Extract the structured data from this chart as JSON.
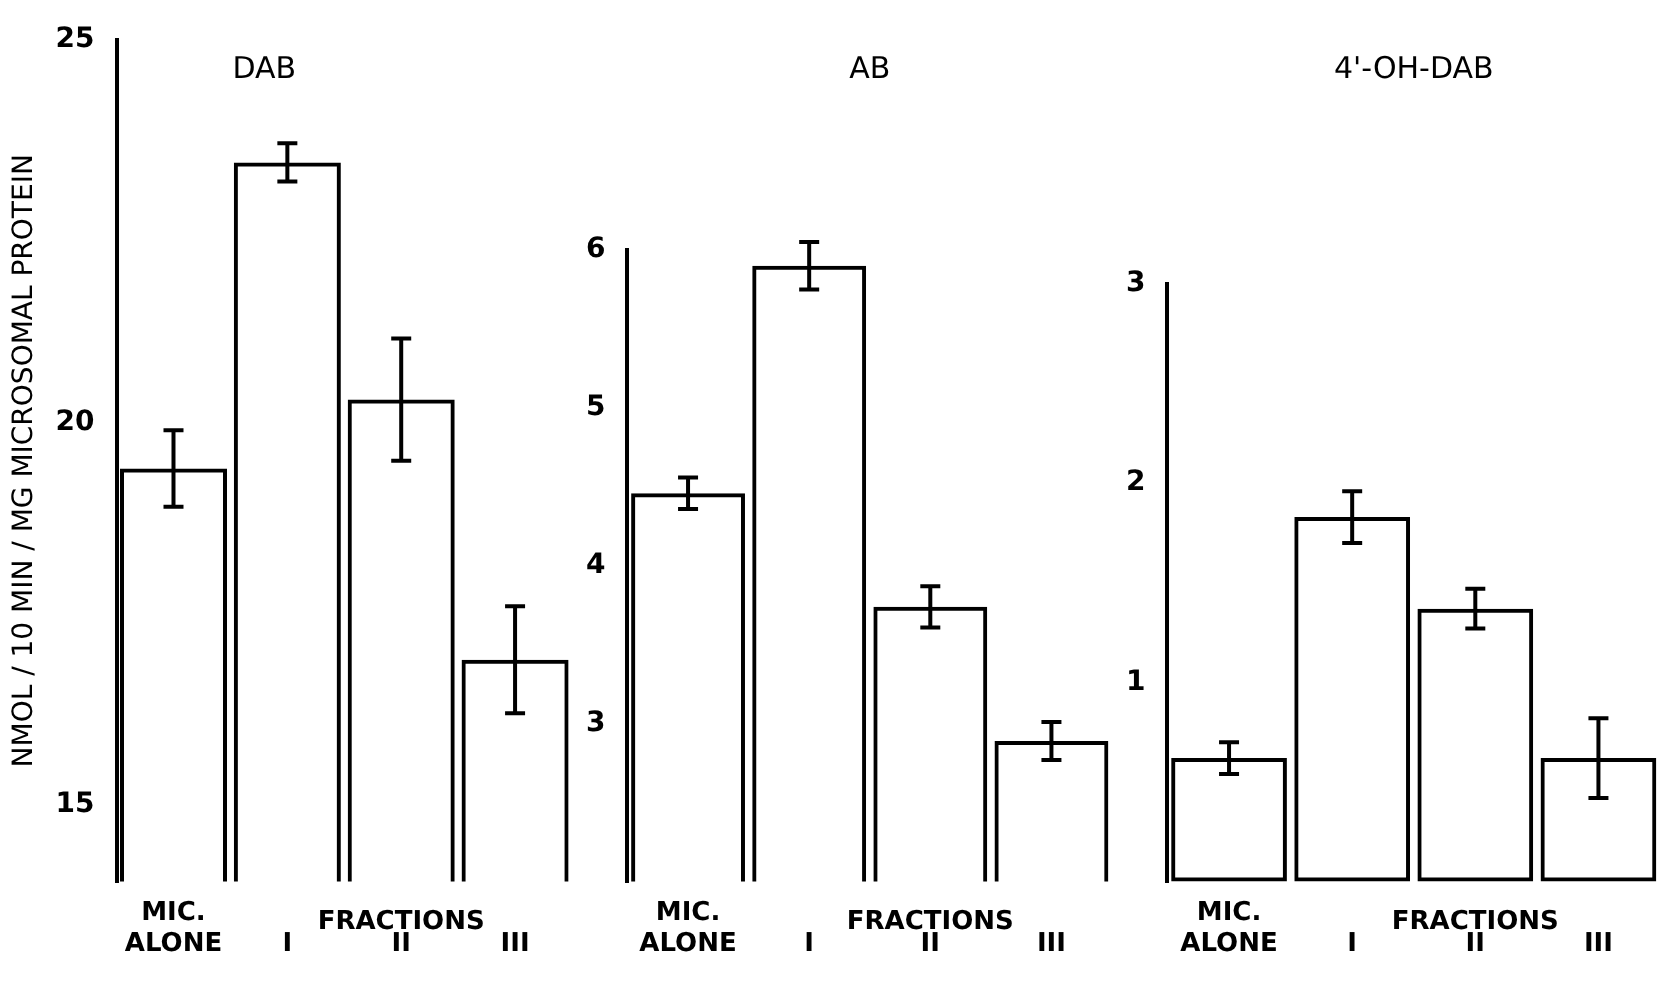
{
  "chart_data": [
    {
      "type": "bar",
      "title": "DAB",
      "ylabel": "NMOL / 10 MIN / MG MICROSOMAL PROTEIN",
      "categories": [
        "MIC. ALONE",
        "I",
        "II",
        "III"
      ],
      "values": [
        19.4,
        23.4,
        20.3,
        16.9
      ],
      "errors": [
        0.5,
        0.25,
        0.8,
        0.7
      ],
      "color": "#000000",
      "ylim": [
        14,
        25
      ],
      "yticks": [
        15,
        20,
        25
      ],
      "annotations": [
        "FRACTIONS"
      ],
      "grid": false,
      "legend": false
    },
    {
      "type": "bar",
      "title": "AB",
      "categories": [
        "MIC. ALONE",
        "I",
        "II",
        "III"
      ],
      "values": [
        4.46,
        5.9,
        3.74,
        2.89
      ],
      "errors": [
        0.1,
        0.15,
        0.13,
        0.12
      ],
      "color": "#000000",
      "ylim": [
        2,
        6
      ],
      "yticks": [
        3,
        4,
        5,
        6
      ],
      "annotations": [
        "FRACTIONS"
      ],
      "grid": false,
      "legend": false
    },
    {
      "type": "bar",
      "title": "4'-OH-DAB",
      "categories": [
        "MIC. ALONE",
        "I",
        "II",
        "III"
      ],
      "values": [
        0.62,
        1.83,
        1.37,
        0.62
      ],
      "errors": [
        0.08,
        0.13,
        0.1,
        0.2
      ],
      "color": "#000000",
      "ylim": [
        0,
        3
      ],
      "yticks": [
        1,
        2,
        3
      ],
      "annotations": [
        "FRACTIONS"
      ],
      "grid": false,
      "legend": false
    }
  ]
}
